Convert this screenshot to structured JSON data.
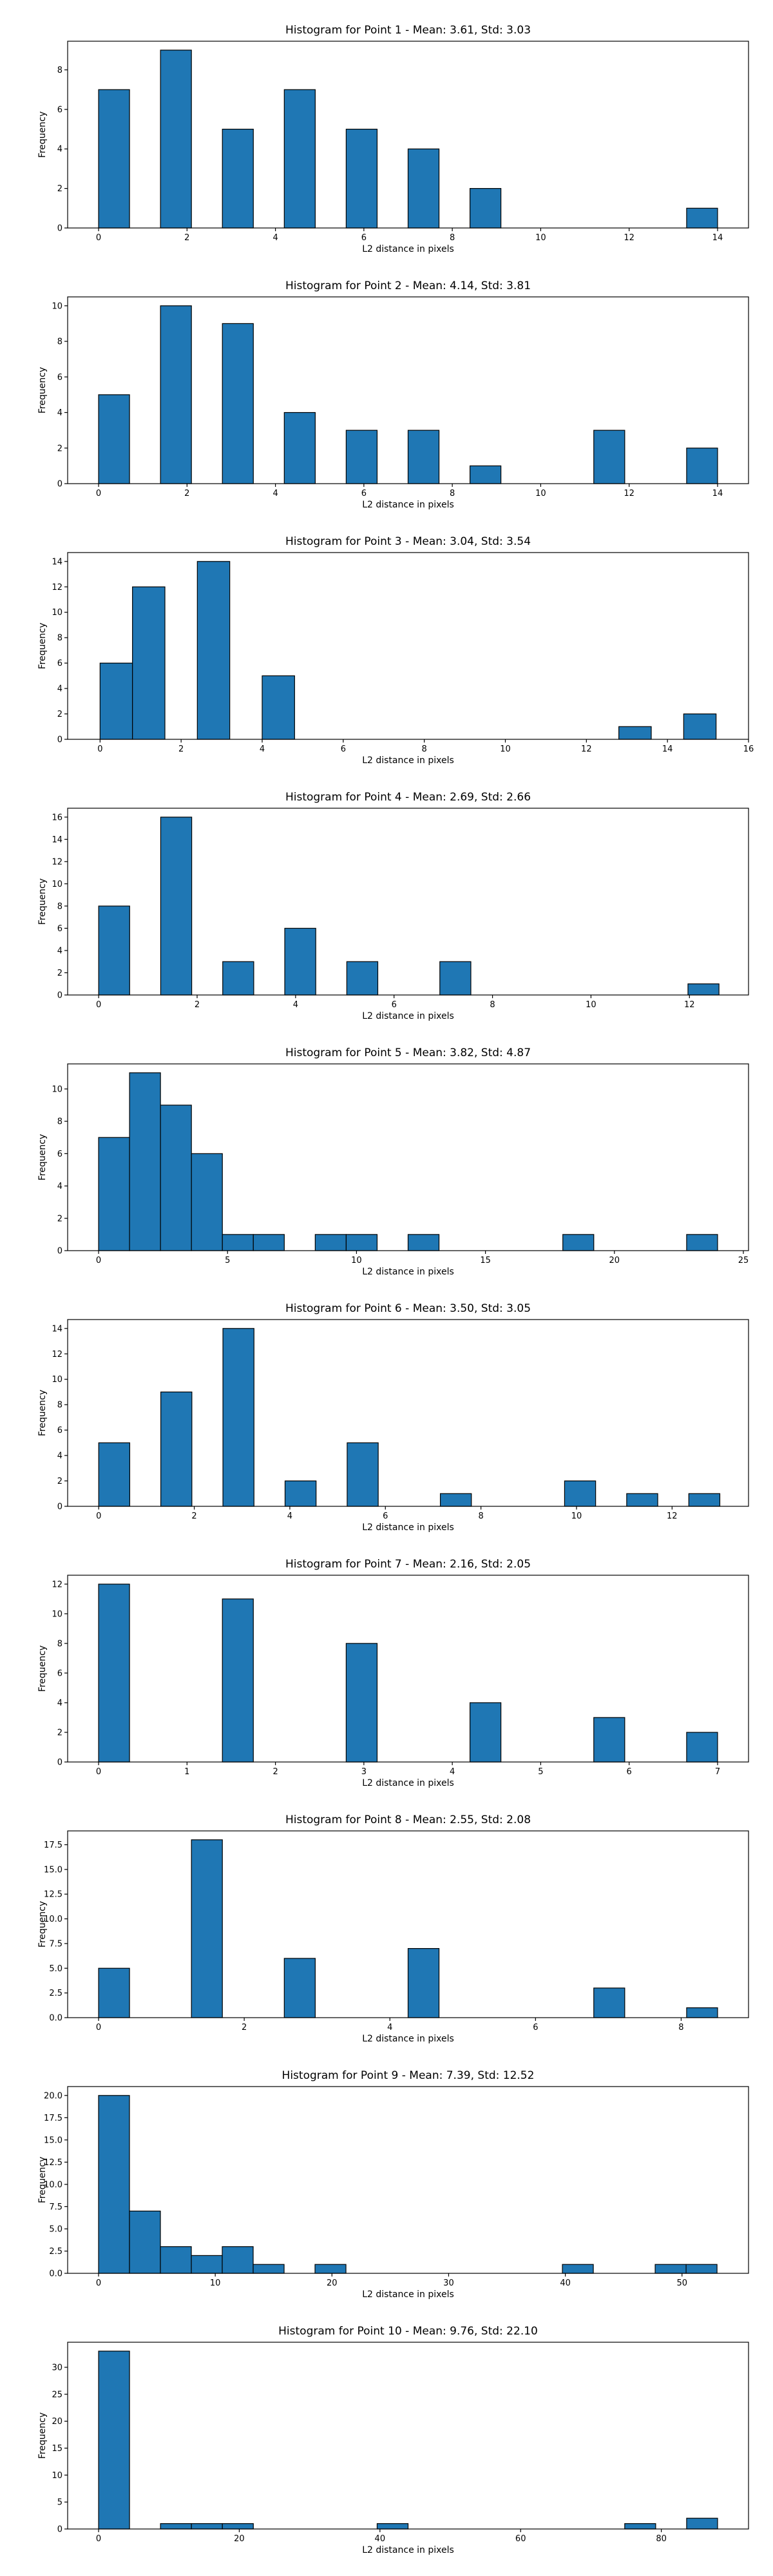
{
  "chart_data": [
    {
      "type": "bar",
      "title": "Histogram for Point 1 - Mean: 3.61, Std: 3.03",
      "xlabel": "L2 distance in pixels",
      "ylabel": "Frequency",
      "bin_width": 0.7,
      "xlim": [
        -0.7,
        14.7
      ],
      "ylim": [
        0,
        9.45
      ],
      "xticks": [
        0,
        2,
        4,
        6,
        8,
        10,
        12,
        14
      ],
      "xtick_labels": [
        "0",
        "2",
        "4",
        "6",
        "8",
        "10",
        "12",
        "14"
      ],
      "yticks": [
        0,
        2,
        4,
        6,
        8
      ],
      "ytick_labels": [
        "0",
        "2",
        "4",
        "6",
        "8"
      ],
      "bins": [
        {
          "x": 0.0,
          "y": 7
        },
        {
          "x": 1.4,
          "y": 9
        },
        {
          "x": 2.8,
          "y": 5
        },
        {
          "x": 4.2,
          "y": 7
        },
        {
          "x": 5.6,
          "y": 5
        },
        {
          "x": 7.0,
          "y": 4
        },
        {
          "x": 8.4,
          "y": 2
        },
        {
          "x": 13.3,
          "y": 1
        }
      ]
    },
    {
      "type": "bar",
      "title": "Histogram for Point 2 - Mean: 4.14, Std: 3.81",
      "xlabel": "L2 distance in pixels",
      "ylabel": "Frequency",
      "bin_width": 0.7,
      "xlim": [
        -0.7,
        14.7
      ],
      "ylim": [
        0,
        10.5
      ],
      "xticks": [
        0,
        2,
        4,
        6,
        8,
        10,
        12,
        14
      ],
      "xtick_labels": [
        "0",
        "2",
        "4",
        "6",
        "8",
        "10",
        "12",
        "14"
      ],
      "yticks": [
        0,
        2,
        4,
        6,
        8,
        10
      ],
      "ytick_labels": [
        "0",
        "2",
        "4",
        "6",
        "8",
        "10"
      ],
      "bins": [
        {
          "x": 0.0,
          "y": 5
        },
        {
          "x": 1.4,
          "y": 10
        },
        {
          "x": 2.8,
          "y": 9
        },
        {
          "x": 4.2,
          "y": 4
        },
        {
          "x": 5.6,
          "y": 3
        },
        {
          "x": 7.0,
          "y": 3
        },
        {
          "x": 8.4,
          "y": 1
        },
        {
          "x": 11.2,
          "y": 3
        },
        {
          "x": 13.3,
          "y": 2
        }
      ]
    },
    {
      "type": "bar",
      "title": "Histogram for Point 3 - Mean: 3.04, Std: 3.54",
      "xlabel": "L2 distance in pixels",
      "ylabel": "Frequency",
      "bin_width": 0.8,
      "xlim": [
        -0.8,
        16.0
      ],
      "ylim": [
        0,
        14.7
      ],
      "xticks": [
        0,
        2,
        4,
        6,
        8,
        10,
        12,
        14,
        16
      ],
      "xtick_labels": [
        "0",
        "2",
        "4",
        "6",
        "8",
        "10",
        "12",
        "14",
        "16"
      ],
      "yticks": [
        0,
        2,
        4,
        6,
        8,
        10,
        12,
        14
      ],
      "ytick_labels": [
        "0",
        "2",
        "4",
        "6",
        "8",
        "10",
        "12",
        "14"
      ],
      "bins": [
        {
          "x": 0.0,
          "y": 6
        },
        {
          "x": 0.8,
          "y": 12
        },
        {
          "x": 2.4,
          "y": 14
        },
        {
          "x": 4.0,
          "y": 5
        },
        {
          "x": 12.8,
          "y": 1
        },
        {
          "x": 14.4,
          "y": 2
        }
      ]
    },
    {
      "type": "bar",
      "title": "Histogram for Point 4 - Mean: 2.69, Std: 2.66",
      "xlabel": "L2 distance in pixels",
      "ylabel": "Frequency",
      "bin_width": 0.63,
      "xlim": [
        -0.63,
        13.2
      ],
      "ylim": [
        0,
        16.8
      ],
      "xticks": [
        0,
        2,
        4,
        6,
        8,
        10,
        12
      ],
      "xtick_labels": [
        "0",
        "2",
        "4",
        "6",
        "8",
        "10",
        "12"
      ],
      "yticks": [
        0,
        2,
        4,
        6,
        8,
        10,
        12,
        14,
        16
      ],
      "ytick_labels": [
        "0",
        "2",
        "4",
        "6",
        "8",
        "10",
        "12",
        "14",
        "16"
      ],
      "bins": [
        {
          "x": 0.0,
          "y": 8
        },
        {
          "x": 1.26,
          "y": 16
        },
        {
          "x": 2.52,
          "y": 3
        },
        {
          "x": 3.78,
          "y": 6
        },
        {
          "x": 5.04,
          "y": 3
        },
        {
          "x": 6.93,
          "y": 3
        },
        {
          "x": 11.97,
          "y": 1
        }
      ]
    },
    {
      "type": "bar",
      "title": "Histogram for Point 5 - Mean: 3.82, Std: 4.87",
      "xlabel": "L2 distance in pixels",
      "ylabel": "Frequency",
      "bin_width": 1.2,
      "xlim": [
        -1.2,
        25.2
      ],
      "ylim": [
        0,
        11.55
      ],
      "xticks": [
        0,
        5,
        10,
        15,
        20,
        25
      ],
      "xtick_labels": [
        "0",
        "5",
        "10",
        "15",
        "20",
        "25"
      ],
      "yticks": [
        0,
        2,
        4,
        6,
        8,
        10
      ],
      "ytick_labels": [
        "0",
        "2",
        "4",
        "6",
        "8",
        "10"
      ],
      "bins": [
        {
          "x": 0.0,
          "y": 7
        },
        {
          "x": 1.2,
          "y": 11
        },
        {
          "x": 2.4,
          "y": 9
        },
        {
          "x": 3.6,
          "y": 6
        },
        {
          "x": 4.8,
          "y": 1
        },
        {
          "x": 6.0,
          "y": 1
        },
        {
          "x": 8.4,
          "y": 1
        },
        {
          "x": 9.6,
          "y": 1
        },
        {
          "x": 12.0,
          "y": 1
        },
        {
          "x": 18.0,
          "y": 1
        },
        {
          "x": 22.8,
          "y": 1
        }
      ]
    },
    {
      "type": "bar",
      "title": "Histogram for Point 6 - Mean: 3.50, Std: 3.05",
      "xlabel": "L2 distance in pixels",
      "ylabel": "Frequency",
      "bin_width": 0.65,
      "xlim": [
        -0.65,
        13.6
      ],
      "ylim": [
        0,
        14.7
      ],
      "xticks": [
        0,
        2,
        4,
        6,
        8,
        10,
        12
      ],
      "xtick_labels": [
        "0",
        "2",
        "4",
        "6",
        "8",
        "10",
        "12"
      ],
      "yticks": [
        0,
        2,
        4,
        6,
        8,
        10,
        12,
        14
      ],
      "ytick_labels": [
        "0",
        "2",
        "4",
        "6",
        "8",
        "10",
        "12",
        "14"
      ],
      "bins": [
        {
          "x": 0.0,
          "y": 5
        },
        {
          "x": 1.3,
          "y": 9
        },
        {
          "x": 2.6,
          "y": 14
        },
        {
          "x": 3.9,
          "y": 2
        },
        {
          "x": 5.2,
          "y": 5
        },
        {
          "x": 7.15,
          "y": 1
        },
        {
          "x": 9.75,
          "y": 2
        },
        {
          "x": 11.05,
          "y": 1
        },
        {
          "x": 12.35,
          "y": 1
        }
      ]
    },
    {
      "type": "bar",
      "title": "Histogram for Point 7 - Mean: 2.16, Std: 2.05",
      "xlabel": "L2 distance in pixels",
      "ylabel": "Frequency",
      "bin_width": 0.35,
      "xlim": [
        -0.35,
        7.35
      ],
      "ylim": [
        0,
        12.6
      ],
      "xticks": [
        0,
        1,
        2,
        3,
        4,
        5,
        6,
        7
      ],
      "xtick_labels": [
        "0",
        "1",
        "2",
        "3",
        "4",
        "5",
        "6",
        "7"
      ],
      "yticks": [
        0,
        2,
        4,
        6,
        8,
        10,
        12
      ],
      "ytick_labels": [
        "0",
        "2",
        "4",
        "6",
        "8",
        "10",
        "12"
      ],
      "bins": [
        {
          "x": 0.0,
          "y": 12
        },
        {
          "x": 1.4,
          "y": 11
        },
        {
          "x": 2.8,
          "y": 8
        },
        {
          "x": 4.2,
          "y": 4
        },
        {
          "x": 5.6,
          "y": 3
        },
        {
          "x": 6.65,
          "y": 2
        }
      ]
    },
    {
      "type": "bar",
      "title": "Histogram for Point 8 - Mean: 2.55, Std: 2.08",
      "xlabel": "L2 distance in pixels",
      "ylabel": "Frequency",
      "bin_width": 0.425,
      "xlim": [
        -0.425,
        8.925
      ],
      "ylim": [
        0,
        18.9
      ],
      "xticks": [
        0,
        2,
        4,
        6,
        8
      ],
      "xtick_labels": [
        "0",
        "2",
        "4",
        "6",
        "8"
      ],
      "yticks": [
        0,
        2.5,
        5,
        7.5,
        10,
        12.5,
        15,
        17.5
      ],
      "ytick_labels": [
        "0.0",
        "2.5",
        "5.0",
        "7.5",
        "10.0",
        "12.5",
        "15.0",
        "17.5"
      ],
      "bins": [
        {
          "x": 0.0,
          "y": 5
        },
        {
          "x": 1.275,
          "y": 18
        },
        {
          "x": 2.55,
          "y": 6
        },
        {
          "x": 4.25,
          "y": 7
        },
        {
          "x": 6.8,
          "y": 3
        },
        {
          "x": 8.075,
          "y": 1
        }
      ]
    },
    {
      "type": "bar",
      "title": "Histogram for Point 9 - Mean: 7.39, Std: 12.52",
      "xlabel": "L2 distance in pixels",
      "ylabel": "Frequency",
      "bin_width": 2.65,
      "xlim": [
        -2.65,
        55.7
      ],
      "ylim": [
        0,
        21.0
      ],
      "xticks": [
        0,
        10,
        20,
        30,
        40,
        50
      ],
      "xtick_labels": [
        "0",
        "10",
        "20",
        "30",
        "40",
        "50"
      ],
      "yticks": [
        0,
        2.5,
        5,
        7.5,
        10,
        12.5,
        15,
        17.5,
        20
      ],
      "ytick_labels": [
        "0.0",
        "2.5",
        "5.0",
        "7.5",
        "10.0",
        "12.5",
        "15.0",
        "17.5",
        "20.0"
      ],
      "bins": [
        {
          "x": 0.0,
          "y": 20
        },
        {
          "x": 2.65,
          "y": 7
        },
        {
          "x": 5.3,
          "y": 3
        },
        {
          "x": 7.95,
          "y": 2
        },
        {
          "x": 10.6,
          "y": 3
        },
        {
          "x": 13.25,
          "y": 1
        },
        {
          "x": 18.55,
          "y": 1
        },
        {
          "x": 39.75,
          "y": 1
        },
        {
          "x": 47.7,
          "y": 1
        },
        {
          "x": 50.35,
          "y": 1
        }
      ]
    },
    {
      "type": "bar",
      "title": "Histogram for Point 10 - Mean: 9.76, Std: 22.10",
      "xlabel": "L2 distance in pixels",
      "ylabel": "Frequency",
      "bin_width": 4.4,
      "xlim": [
        -4.4,
        92.4
      ],
      "ylim": [
        0,
        34.65
      ],
      "xticks": [
        0,
        20,
        40,
        60,
        80
      ],
      "xtick_labels": [
        "0",
        "20",
        "40",
        "60",
        "80"
      ],
      "yticks": [
        0,
        5,
        10,
        15,
        20,
        25,
        30
      ],
      "ytick_labels": [
        "0",
        "5",
        "10",
        "15",
        "20",
        "25",
        "30"
      ],
      "bins": [
        {
          "x": 0.0,
          "y": 33
        },
        {
          "x": 8.8,
          "y": 1
        },
        {
          "x": 13.2,
          "y": 1
        },
        {
          "x": 17.6,
          "y": 1
        },
        {
          "x": 39.6,
          "y": 1
        },
        {
          "x": 74.8,
          "y": 1
        },
        {
          "x": 83.6,
          "y": 2
        }
      ]
    }
  ]
}
